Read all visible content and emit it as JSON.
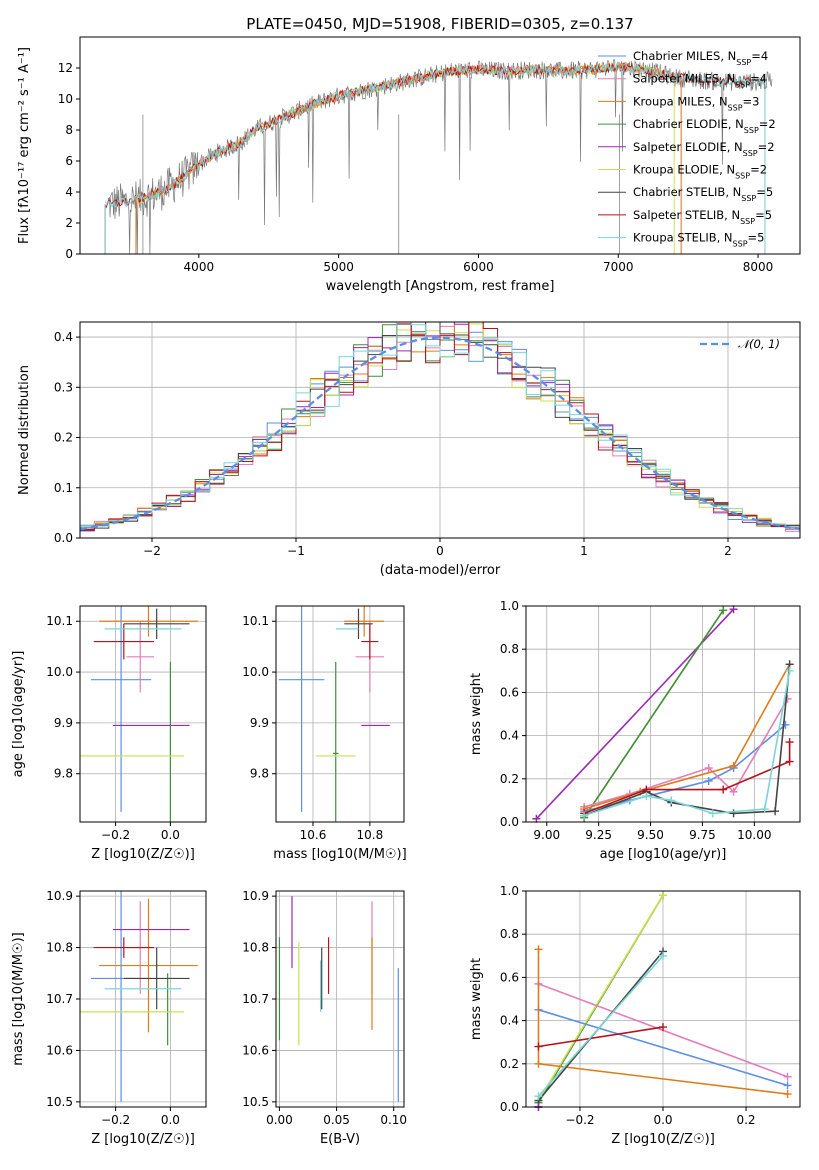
{
  "figure_title": "PLATE=0450, MJD=51908, FIBERID=0305, z=0.137",
  "colors": {
    "Chabrier MILES": "#5b8ee6",
    "Salpeter MILES": "#e57eb8",
    "Kroupa MILES": "#e07b1a",
    "Chabrier ELODIE": "#3f8f3f",
    "Salpeter ELODIE": "#9a28b5",
    "Kroupa ELODIE": "#c8e04e",
    "Chabrier STELIB": "#444444",
    "Salpeter STELIB": "#b5121b",
    "Kroupa STELIB": "#7ad6d6",
    "gauss": "#5b8ee6"
  },
  "chart_data": [
    {
      "id": "spectrum",
      "type": "line",
      "xlabel": "wavelength [Angstrom, rest frame]",
      "ylabel": "Flux [f_λ 10^-17 erg cm^-2 s^-1 A^-1]",
      "xlim": [
        3150,
        8300
      ],
      "ylim": [
        0,
        14
      ],
      "xticks": [
        4000,
        5000,
        6000,
        7000,
        8000
      ],
      "yticks": [
        0,
        2,
        4,
        6,
        8,
        10,
        12
      ],
      "grid": false,
      "legend": "top-right",
      "legend_entries": [
        "Chabrier MILES, N_SSP=4",
        "Salpeter MILES, N_SSP=4",
        "Kroupa MILES, N_SSP=3",
        "Chabrier ELODIE, N_SSP=2",
        "Salpeter ELODIE, N_SSP=2",
        "Kroupa ELODIE, N_SSP=2",
        "Chabrier STELIB, N_SSP=5",
        "Salpeter STELIB, N_SSP=5",
        "Kroupa STELIB, N_SSP=5"
      ],
      "continuum": {
        "x": [
          3350,
          3500,
          3600,
          3700,
          3800,
          3900,
          4000,
          4100,
          4200,
          4300,
          4400,
          4600,
          4800,
          5000,
          5200,
          5400,
          5600,
          5800,
          6000,
          6200,
          6400,
          6600,
          6800,
          7000,
          7200,
          7400,
          7600,
          7800,
          8000,
          8100
        ],
        "y": [
          3.2,
          3.4,
          3.6,
          3.9,
          4.4,
          5.0,
          5.8,
          6.4,
          6.8,
          7.2,
          8.0,
          8.8,
          9.6,
          10.2,
          10.6,
          11.0,
          11.4,
          11.8,
          11.9,
          11.8,
          11.9,
          11.8,
          11.9,
          12.1,
          11.9,
          11.4,
          11.2,
          11.1,
          11.1,
          11.2
        ]
      },
      "model_ranges": {
        "ELODIE": [
          3550,
          7400
        ],
        "STELIB": [
          3330,
          8050
        ],
        "MILES": [
          3550,
          7450
        ]
      }
    },
    {
      "id": "residuals",
      "type": "histogram",
      "xlabel": "(data-model)/error",
      "ylabel": "Normed distribution",
      "xlim": [
        -2.5,
        2.5
      ],
      "ylim": [
        0,
        0.43
      ],
      "xticks": [
        -2,
        -1,
        0,
        1,
        2
      ],
      "yticks": [
        0.0,
        0.1,
        0.2,
        0.3,
        0.4
      ],
      "grid": true,
      "legend": "top-right",
      "gauss_label": "𝒩(0, 1)",
      "bin_width": 0.1
    },
    {
      "id": "age_vs_Z",
      "type": "errorbar",
      "xlabel": "Z [log10(Z/Z☉)]",
      "ylabel": "age  [log10(age/yr)]",
      "xlim": [
        -0.33,
        0.13
      ],
      "ylim": [
        9.705,
        10.13
      ],
      "xticks": [
        -0.2,
        0.0
      ],
      "yticks": [
        9.8,
        9.9,
        10.0,
        10.1
      ],
      "points": [
        {
          "m": "Chabrier MILES",
          "x": -0.18,
          "xe": 0.11,
          "y": 9.985,
          "ye": 0.26
        },
        {
          "m": "Salpeter MILES",
          "x": -0.11,
          "xe": 0.05,
          "y": 10.03,
          "ye": 0.07
        },
        {
          "m": "Kroupa MILES",
          "x": -0.08,
          "xe": 0.18,
          "y": 10.1,
          "ye": 0.03
        },
        {
          "m": "Chabrier ELODIE",
          "x": 0.0,
          "xe": 0.0,
          "y": 9.84,
          "ye": 0.18
        },
        {
          "m": "Salpeter ELODIE",
          "x": -0.07,
          "xe": 0.14,
          "y": 9.895,
          "ye": 0.0
        },
        {
          "m": "Kroupa ELODIE",
          "x": -0.2,
          "xe": 0.25,
          "y": 9.835,
          "ye": 0.0
        },
        {
          "m": "Chabrier STELIB",
          "x": -0.05,
          "xe": 0.12,
          "y": 10.095,
          "ye": 0.03
        },
        {
          "m": "Salpeter STELIB",
          "x": -0.17,
          "xe": 0.11,
          "y": 10.06,
          "ye": 0.035
        },
        {
          "m": "Kroupa STELIB",
          "x": -0.1,
          "xe": 0.14,
          "y": 10.085,
          "ye": 0.0
        }
      ]
    },
    {
      "id": "age_vs_mass",
      "type": "errorbar",
      "xlabel": "mass [log10(M/M☉)]",
      "ylabel": "",
      "xlim": [
        10.47,
        10.92
      ],
      "ylim": [
        9.705,
        10.13
      ],
      "xticks": [
        10.6,
        10.8
      ],
      "yticks": [
        9.8,
        9.9,
        10.0,
        10.1
      ],
      "points": [
        {
          "m": "Chabrier MILES",
          "x": 10.56,
          "xe": 0.08,
          "y": 9.985,
          "ye": 0.26
        },
        {
          "m": "Salpeter MILES",
          "x": 10.8,
          "xe": 0.05,
          "y": 10.03,
          "ye": 0.07
        },
        {
          "m": "Kroupa MILES",
          "x": 10.78,
          "xe": 0.07,
          "y": 10.1,
          "ye": 0.03
        },
        {
          "m": "Chabrier ELODIE",
          "x": 10.68,
          "xe": 0.01,
          "y": 9.84,
          "ye": 0.18
        },
        {
          "m": "Salpeter ELODIE",
          "x": 10.82,
          "xe": 0.05,
          "y": 9.895,
          "ye": 0.0
        },
        {
          "m": "Kroupa ELODIE",
          "x": 10.68,
          "xe": 0.07,
          "y": 9.835,
          "ye": 0.0
        },
        {
          "m": "Chabrier STELIB",
          "x": 10.76,
          "xe": 0.05,
          "y": 10.095,
          "ye": 0.03
        },
        {
          "m": "Salpeter STELIB",
          "x": 10.8,
          "xe": 0.03,
          "y": 10.06,
          "ye": 0.035
        },
        {
          "m": "Kroupa STELIB",
          "x": 10.72,
          "xe": 0.04,
          "y": 10.085,
          "ye": 0.0
        }
      ]
    },
    {
      "id": "weight_vs_age",
      "type": "line",
      "xlabel": "age  [log10(age/yr)]",
      "ylabel": "mass weight",
      "xlim": [
        8.9,
        10.22
      ],
      "ylim": [
        0,
        1
      ],
      "xticks": [
        9.0,
        9.25,
        9.5,
        9.75,
        10.0
      ],
      "yticks": [
        0.0,
        0.2,
        0.4,
        0.6,
        0.8,
        1.0
      ],
      "series": [
        {
          "m": "Salpeter ELODIE",
          "x": [
            8.95,
            9.9
          ],
          "y": [
            0.015,
            0.985
          ]
        },
        {
          "m": "Kroupa ELODIE",
          "x": [
            9.18,
            9.85
          ],
          "y": [
            0.02,
            0.98
          ]
        },
        {
          "m": "Chabrier ELODIE",
          "x": [
            9.18,
            9.85
          ],
          "y": [
            0.02,
            0.98
          ]
        },
        {
          "m": "Chabrier MILES",
          "x": [
            9.18,
            9.4,
            9.78,
            9.9,
            10.15
          ],
          "y": [
            0.05,
            0.1,
            0.19,
            0.25,
            0.45
          ]
        },
        {
          "m": "Salpeter MILES",
          "x": [
            9.18,
            9.4,
            9.78,
            9.9,
            10.16
          ],
          "y": [
            0.07,
            0.13,
            0.25,
            0.14,
            0.57
          ]
        },
        {
          "m": "Kroupa MILES",
          "x": [
            9.18,
            9.45,
            9.9,
            10.17
          ],
          "y": [
            0.06,
            0.14,
            0.26,
            0.73
          ]
        },
        {
          "m": "Chabrier STELIB",
          "x": [
            9.18,
            9.48,
            9.6,
            9.9,
            10.1,
            10.17
          ],
          "y": [
            0.03,
            0.14,
            0.09,
            0.04,
            0.05,
            0.73
          ]
        },
        {
          "m": "Salpeter STELIB",
          "x": [
            9.18,
            9.48,
            9.85,
            10.17,
            10.17
          ],
          "y": [
            0.04,
            0.15,
            0.15,
            0.28,
            0.37
          ]
        },
        {
          "m": "Kroupa STELIB",
          "x": [
            9.18,
            9.48,
            9.6,
            9.8,
            10.05,
            10.17
          ],
          "y": [
            0.03,
            0.12,
            0.1,
            0.04,
            0.06,
            0.7
          ]
        }
      ]
    },
    {
      "id": "mass_vs_Z",
      "type": "errorbar",
      "xlabel": "Z [log10(Z/Z☉)]",
      "ylabel": "mass [log10(M/M☉)]",
      "xlim": [
        -0.33,
        0.13
      ],
      "ylim": [
        10.49,
        10.91
      ],
      "xticks": [
        -0.2,
        0.0
      ],
      "yticks": [
        10.5,
        10.6,
        10.7,
        10.8,
        10.9
      ],
      "points": [
        {
          "m": "Chabrier MILES",
          "x": -0.18,
          "xe": 0.11,
          "y": 10.74,
          "ye": 0.24
        },
        {
          "m": "Salpeter MILES",
          "x": -0.11,
          "xe": 0.05,
          "y": 10.8,
          "ye": 0.09
        },
        {
          "m": "Kroupa MILES",
          "x": -0.08,
          "xe": 0.18,
          "y": 10.765,
          "ye": 0.13
        },
        {
          "m": "Chabrier ELODIE",
          "x": -0.01,
          "xe": 0.0,
          "y": 10.68,
          "ye": 0.07
        },
        {
          "m": "Salpeter ELODIE",
          "x": -0.07,
          "xe": 0.14,
          "y": 10.835,
          "ye": 0.0
        },
        {
          "m": "Kroupa ELODIE",
          "x": -0.2,
          "xe": 0.25,
          "y": 10.675,
          "ye": 0.0
        },
        {
          "m": "Chabrier STELIB",
          "x": -0.05,
          "xe": 0.12,
          "y": 10.74,
          "ye": 0.06
        },
        {
          "m": "Salpeter STELIB",
          "x": -0.17,
          "xe": 0.11,
          "y": 10.8,
          "ye": 0.02
        },
        {
          "m": "Kroupa STELIB",
          "x": -0.1,
          "xe": 0.14,
          "y": 10.72,
          "ye": 0.0
        }
      ]
    },
    {
      "id": "mass_vs_ebv",
      "type": "errorbar",
      "xlabel": "E(B-V)",
      "ylabel": "",
      "xlim": [
        -0.003,
        0.109
      ],
      "ylim": [
        10.49,
        10.91
      ],
      "xticks": [
        0.0,
        0.05,
        0.1
      ],
      "yticks": [
        10.5,
        10.6,
        10.7,
        10.8,
        10.9
      ],
      "points": [
        {
          "m": "Chabrier ELODIE",
          "x": 0.0,
          "y": 10.72,
          "ye": 0.1
        },
        {
          "m": "Salpeter ELODIE",
          "x": 0.011,
          "y": 10.83,
          "ye": 0.07
        },
        {
          "m": "Kroupa ELODIE",
          "x": 0.017,
          "y": 10.71,
          "ye": 0.1
        },
        {
          "m": "Kroupa STELIB",
          "x": 0.036,
          "y": 10.725,
          "ye": 0.05
        },
        {
          "m": "Chabrier STELIB",
          "x": 0.037,
          "y": 10.74,
          "ye": 0.06
        },
        {
          "m": "Salpeter STELIB",
          "x": 0.043,
          "y": 10.765,
          "ye": 0.055
        },
        {
          "m": "Salpeter MILES",
          "x": 0.081,
          "y": 10.8,
          "ye": 0.09
        },
        {
          "m": "Kroupa MILES",
          "x": 0.081,
          "y": 10.73,
          "ye": 0.09
        },
        {
          "m": "Chabrier MILES",
          "x": 0.104,
          "y": 10.63,
          "ye": 0.13
        }
      ]
    },
    {
      "id": "weight_vs_Z",
      "type": "line",
      "xlabel": "Z [log10(Z/Z☉)]",
      "ylabel": "mass weight",
      "xlim": [
        -0.33,
        0.33
      ],
      "ylim": [
        0,
        1
      ],
      "xticks": [
        -0.2,
        0.0,
        0.2
      ],
      "yticks": [
        0.0,
        0.2,
        0.4,
        0.6,
        0.8,
        1.0
      ],
      "series": [
        {
          "m": "Chabrier ELODIE",
          "x": [
            -0.3,
            0.0
          ],
          "y": [
            0.02,
            0.98
          ]
        },
        {
          "m": "Kroupa ELODIE",
          "x": [
            -0.3,
            0.0
          ],
          "y": [
            0.03,
            0.98
          ]
        },
        {
          "m": "Chabrier MILES",
          "x": [
            -0.3,
            0.3
          ],
          "y": [
            0.45,
            0.1
          ]
        },
        {
          "m": "Salpeter MILES",
          "x": [
            -0.3,
            0.3
          ],
          "y": [
            0.57,
            0.14
          ]
        },
        {
          "m": "Kroupa MILES",
          "x": [
            -0.3,
            -0.3,
            0.3
          ],
          "y": [
            0.73,
            0.2,
            0.06
          ]
        },
        {
          "m": "Chabrier STELIB",
          "x": [
            -0.3,
            0.0
          ],
          "y": [
            0.03,
            0.72
          ]
        },
        {
          "m": "Salpeter STELIB",
          "x": [
            -0.3,
            0.0
          ],
          "y": [
            0.28,
            0.37
          ]
        },
        {
          "m": "Kroupa STELIB",
          "x": [
            -0.3,
            0.0
          ],
          "y": [
            0.05,
            0.7
          ]
        },
        {
          "m": "Salpeter ELODIE",
          "x": [
            -0.3,
            -0.3
          ],
          "y": [
            0.0,
            0.0
          ]
        }
      ]
    }
  ]
}
